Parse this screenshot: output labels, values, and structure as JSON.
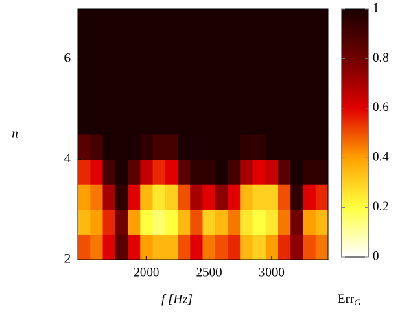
{
  "chart_data": {
    "type": "heatmap",
    "xlabel": "f [Hz]",
    "ylabel": "n",
    "colorbar_label": "Err",
    "colorbar_label_sub": "G",
    "xbins": [
      1450,
      1550,
      1650,
      1750,
      1850,
      1950,
      2050,
      2150,
      2250,
      2350,
      2450,
      2550,
      2650,
      2750,
      2850,
      2950,
      3050,
      3150,
      3250,
      3350,
      3450
    ],
    "ybins": [
      2,
      2.5,
      3,
      3.5,
      4,
      4.5,
      5,
      5.5,
      6,
      6.5,
      7
    ],
    "z": [
      [
        0.5,
        0.45,
        0.6,
        0.85,
        0.6,
        0.4,
        0.35,
        0.35,
        0.5,
        0.6,
        0.45,
        0.5,
        0.55,
        0.35,
        0.3,
        0.4,
        0.55,
        0.75,
        0.5,
        0.45
      ],
      [
        0.35,
        0.4,
        0.55,
        0.8,
        0.4,
        0.2,
        0.15,
        0.2,
        0.35,
        0.5,
        0.3,
        0.35,
        0.45,
        0.25,
        0.2,
        0.25,
        0.45,
        0.8,
        0.4,
        0.35
      ],
      [
        0.4,
        0.45,
        0.7,
        0.95,
        0.6,
        0.35,
        0.25,
        0.3,
        0.5,
        0.7,
        0.6,
        0.75,
        0.6,
        0.35,
        0.3,
        0.3,
        0.5,
        0.95,
        0.6,
        0.55
      ],
      [
        0.55,
        0.6,
        0.9,
        1,
        0.85,
        0.65,
        0.55,
        0.6,
        0.85,
        0.95,
        0.95,
        1,
        0.9,
        0.7,
        0.6,
        0.65,
        0.85,
        1,
        0.95,
        0.95
      ],
      [
        0.85,
        0.9,
        1,
        1,
        1,
        0.95,
        0.9,
        0.9,
        1,
        1,
        1,
        1,
        1,
        0.95,
        0.95,
        1,
        1,
        1,
        1,
        1
      ],
      [
        1,
        1,
        1,
        1,
        1,
        1,
        1,
        1,
        1,
        1,
        1,
        1,
        1,
        1,
        1,
        1,
        1,
        1,
        1,
        1
      ],
      [
        1,
        1,
        1,
        1,
        1,
        1,
        1,
        1,
        1,
        1,
        1,
        1,
        1,
        1,
        1,
        1,
        1,
        1,
        1,
        1
      ],
      [
        1,
        1,
        1,
        1,
        1,
        1,
        1,
        1,
        1,
        1,
        1,
        1,
        1,
        1,
        1,
        1,
        1,
        1,
        1,
        1
      ],
      [
        1,
        1,
        1,
        1,
        1,
        1,
        1,
        1,
        1,
        1,
        1,
        1,
        1,
        1,
        1,
        1,
        1,
        1,
        1,
        1
      ],
      [
        1,
        1,
        1,
        1,
        1,
        1,
        1,
        1,
        1,
        1,
        1,
        1,
        1,
        1,
        1,
        1,
        1,
        1,
        1,
        1
      ]
    ],
    "xlim": [
      1450,
      3450
    ],
    "xticks": [
      2000,
      2500,
      3000
    ],
    "ylim": [
      2,
      7
    ],
    "yticks": [
      2,
      4,
      6
    ],
    "clim": [
      0,
      1
    ],
    "cticks": [
      0,
      0.2,
      0.4,
      0.6,
      0.8,
      1
    ],
    "colormap": [
      [
        0,
        "#ffffff"
      ],
      [
        0.2,
        "#ffff40"
      ],
      [
        0.4,
        "#ffa000"
      ],
      [
        0.6,
        "#e00000"
      ],
      [
        0.8,
        "#700000"
      ],
      [
        1,
        "#1a0000"
      ]
    ]
  }
}
